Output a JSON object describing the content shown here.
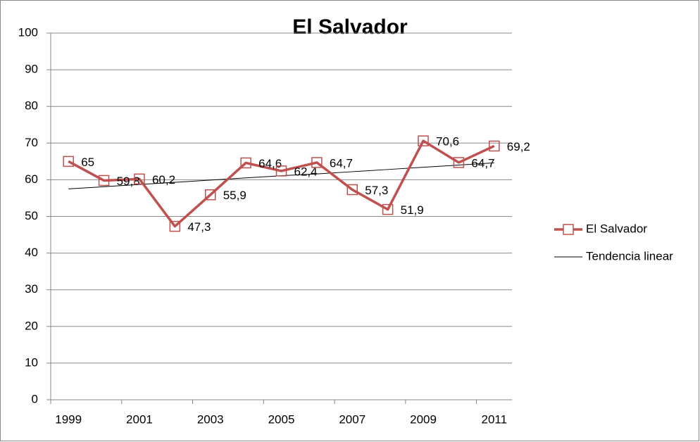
{
  "chart_data": {
    "type": "line",
    "title": "El Salvador",
    "categories": [
      "1999",
      null,
      "2001",
      null,
      "2003",
      null,
      "2005",
      null,
      "2007",
      null,
      "2009",
      null,
      "2011"
    ],
    "series": [
      {
        "name": "El Salvador",
        "color": "#c0504d",
        "values": [
          65,
          59.8,
          60.2,
          47.3,
          55.9,
          64.6,
          62.4,
          64.7,
          57.3,
          51.9,
          70.6,
          64.7,
          69.2
        ],
        "value_labels": [
          "65",
          "59,8",
          "60,2",
          "47,3",
          "55,9",
          "64,6",
          "62,4",
          "64,7",
          "57,3",
          "51,9",
          "70,6",
          "64,7",
          "69,2"
        ]
      },
      {
        "name": "Tendencia linear",
        "color": "#000000",
        "values": [
          57.5,
          58.1,
          58.7,
          59.3,
          59.9,
          60.5,
          61.1,
          61.6,
          62.2,
          62.8,
          63.4,
          64.0,
          64.6
        ]
      }
    ],
    "ylim": [
      0,
      100
    ],
    "yticks": [
      0,
      10,
      20,
      30,
      40,
      50,
      60,
      70,
      80,
      90,
      100
    ],
    "grid": true,
    "legend": "right"
  }
}
